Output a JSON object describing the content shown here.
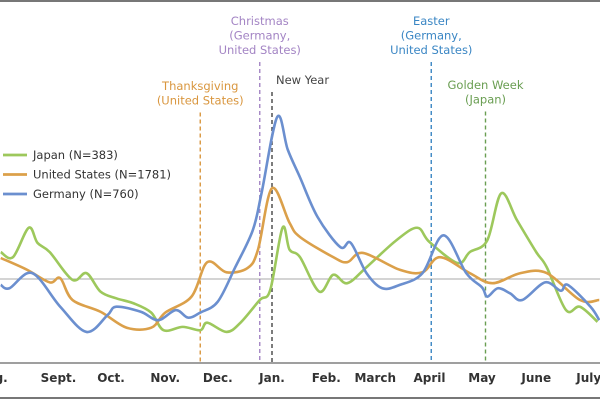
{
  "chart_data": {
    "type": "line",
    "title": "",
    "xlabel": "",
    "ylabel": "",
    "grid": false,
    "legend_position": "top-left",
    "baseline_value": 1.0,
    "ylim": [
      0,
      4.3
    ],
    "x_tick_labels": [
      "Aug.",
      "Sept.",
      "Oct.",
      "Nov.",
      "Dec.",
      "Jan.",
      "Feb.",
      "March",
      "April",
      "May",
      "June",
      "July"
    ],
    "series": [
      {
        "name": "Japan (N=383)",
        "color": "#9dc85c",
        "x": [
          "Jul 30",
          "Aug 6",
          "Aug 15",
          "Aug 20",
          "Aug 27",
          "Sep 9",
          "Sep 17",
          "Sep 25",
          "Oct 4",
          "Oct 14",
          "Oct 24",
          "Oct 31",
          "Nov 11",
          "Nov 21",
          "Nov 25",
          "Dec 6",
          "Dec 14",
          "Dec 25",
          "Dec 31",
          "Jan 7",
          "Jan 11",
          "Jan 17",
          "Jan 28",
          "Feb 5",
          "Feb 13",
          "Feb 24",
          "Mar 13",
          "Mar 25",
          "Apr 1",
          "Apr 17",
          "Apr 24",
          "May 4",
          "May 12",
          "May 21",
          "Jun 1",
          "Jun 7",
          "Jun 18",
          "Jun 26",
          "Jul 6"
        ],
        "y": [
          1.32,
          1.26,
          1.61,
          1.43,
          1.32,
          0.99,
          1.07,
          0.85,
          0.77,
          0.71,
          0.6,
          0.39,
          0.43,
          0.39,
          0.48,
          0.37,
          0.48,
          0.75,
          0.87,
          1.61,
          1.35,
          1.26,
          0.85,
          1.05,
          0.95,
          1.14,
          1.46,
          1.61,
          1.44,
          1.19,
          1.32,
          1.46,
          2.02,
          1.7,
          1.32,
          1.14,
          0.63,
          0.67,
          0.49
        ]
      },
      {
        "name": "United States (N=1781)",
        "color": "#dba04a",
        "x": [
          "Jul 30",
          "Aug 14",
          "Aug 27",
          "Sep 2",
          "Sep 9",
          "Sep 25",
          "Oct 10",
          "Oct 24",
          "Nov 1",
          "Nov 16",
          "Nov 25",
          "Dec 6",
          "Dec 18",
          "Dec 24",
          "Jan 1",
          "Jan 11",
          "Jan 17",
          "Feb 5",
          "Feb 13",
          "Feb 22",
          "Mar 15",
          "Mar 28",
          "Apr 7",
          "Apr 24",
          "May 7",
          "May 23",
          "Jun 7",
          "Jun 26",
          "Jul 7"
        ],
        "y": [
          1.25,
          1.11,
          0.96,
          1.01,
          0.75,
          0.61,
          0.42,
          0.42,
          0.6,
          0.79,
          1.2,
          1.08,
          1.13,
          1.35,
          2.08,
          1.67,
          1.5,
          1.26,
          1.2,
          1.31,
          1.11,
          1.08,
          1.26,
          1.07,
          0.95,
          1.07,
          1.07,
          0.75,
          0.75
        ]
      },
      {
        "name": "Germany (N=760)",
        "color": "#6b8fcf",
        "x": [
          "Jul 30",
          "Aug 4",
          "Aug 17",
          "Sep 2",
          "Sep 17",
          "Sep 29",
          "Oct 4",
          "Oct 18",
          "Oct 28",
          "Nov 7",
          "Nov 14",
          "Nov 21",
          "Dec 1",
          "Dec 11",
          "Dec 21",
          "Dec 26",
          "Jan 4",
          "Jan 10",
          "Jan 17",
          "Jan 27",
          "Feb 9",
          "Feb 15",
          "Feb 24",
          "Mar 5",
          "Mar 15",
          "Mar 28",
          "Apr 9",
          "Apr 22",
          "May 1",
          "May 4",
          "May 10",
          "May 17",
          "May 24",
          "Jun 6",
          "Jun 15",
          "Jun 19",
          "Jul 2",
          "Jul 7"
        ],
        "y": [
          0.93,
          0.89,
          1.07,
          0.67,
          0.37,
          0.57,
          0.67,
          0.61,
          0.51,
          0.63,
          0.54,
          0.6,
          0.73,
          1.14,
          1.58,
          2.02,
          2.93,
          2.54,
          2.21,
          1.74,
          1.38,
          1.43,
          1.07,
          0.89,
          0.93,
          1.07,
          1.52,
          1.07,
          0.9,
          0.79,
          0.89,
          0.83,
          0.75,
          0.96,
          0.86,
          0.93,
          0.67,
          0.51
        ]
      }
    ],
    "annotations": [
      {
        "lines": [
          "Thanksgiving",
          "(United States)"
        ],
        "date": "Nov 21",
        "color": "#d9963e"
      },
      {
        "lines": [
          "Christmas",
          "(Germany,",
          "United States)"
        ],
        "date": "Dec 25",
        "color": "#a384c4"
      },
      {
        "lines": [
          "New Year"
        ],
        "date": "Jan 1",
        "color": "#444444"
      },
      {
        "lines": [
          "Easter",
          "(Germany,",
          "United States)"
        ],
        "date": "Apr 2",
        "color": "#3a86c4"
      },
      {
        "lines": [
          "Golden Week",
          "(Japan)"
        ],
        "date": "May 3",
        "color": "#6a9e52"
      }
    ]
  }
}
